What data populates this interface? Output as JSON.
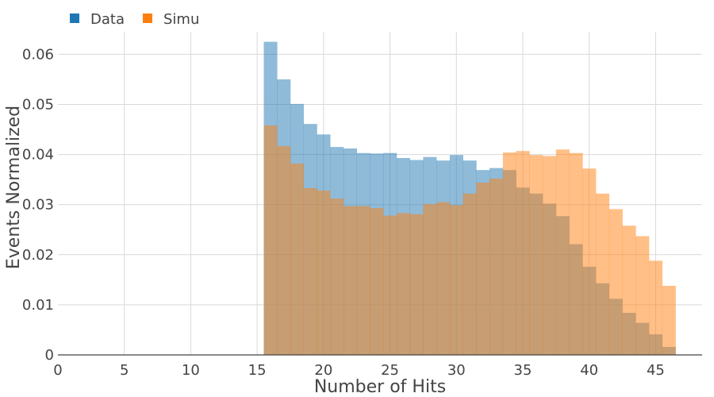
{
  "chart_data": {
    "type": "bar",
    "subtype": "overlaid histogram",
    "xlabel": "Number of Hits",
    "ylabel": "Events Normalized",
    "xlim": [
      0,
      48.5
    ],
    "ylim": [
      0,
      0.0645
    ],
    "x_ticks": [
      0,
      5,
      10,
      15,
      20,
      25,
      30,
      35,
      40,
      45
    ],
    "x_tick_labels": [
      "0",
      "5",
      "10",
      "15",
      "20",
      "25",
      "30",
      "35",
      "40",
      "45"
    ],
    "y_ticks": [
      0,
      0.01,
      0.02,
      0.03,
      0.04,
      0.05,
      0.06
    ],
    "y_tick_labels": [
      "0",
      "0.01",
      "0.02",
      "0.03",
      "0.04",
      "0.05",
      "0.06"
    ],
    "grid": true,
    "legend_position": "top-left",
    "bin_width": 1,
    "bins": [
      16,
      17,
      18,
      19,
      20,
      21,
      22,
      23,
      24,
      25,
      26,
      27,
      28,
      29,
      30,
      31,
      32,
      33,
      34,
      35,
      36,
      37,
      38,
      39,
      40,
      41,
      42,
      43,
      44,
      45,
      46
    ],
    "series": [
      {
        "name": "Data",
        "color": "#1f77b4",
        "values": [
          0.0625,
          0.055,
          0.0501,
          0.0461,
          0.044,
          0.0415,
          0.0412,
          0.0403,
          0.0402,
          0.0403,
          0.0393,
          0.0389,
          0.0395,
          0.0388,
          0.0399,
          0.0388,
          0.0369,
          0.0373,
          0.0369,
          0.0334,
          0.0322,
          0.0302,
          0.0277,
          0.0221,
          0.0176,
          0.0143,
          0.0112,
          0.0084,
          0.0064,
          0.0041,
          0.0016
        ]
      },
      {
        "name": "Simu",
        "color": "#ff7f0e",
        "values": [
          0.0458,
          0.0417,
          0.0382,
          0.0333,
          0.0328,
          0.0312,
          0.0297,
          0.0297,
          0.0293,
          0.0278,
          0.0283,
          0.0281,
          0.0301,
          0.0305,
          0.0299,
          0.0322,
          0.0344,
          0.0352,
          0.0404,
          0.0407,
          0.0399,
          0.0397,
          0.041,
          0.0403,
          0.0372,
          0.0322,
          0.0291,
          0.0258,
          0.0237,
          0.0188,
          0.0138
        ]
      }
    ]
  }
}
